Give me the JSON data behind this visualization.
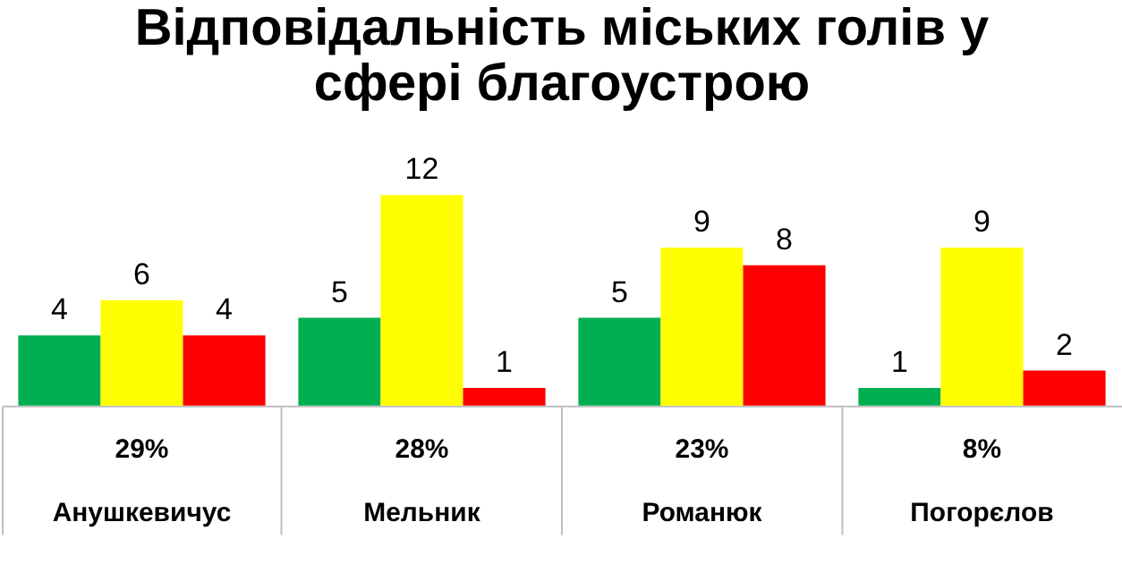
{
  "chart_data": {
    "type": "bar",
    "title": [
      "Відповідальність міських голів у",
      "сфері благоустрою"
    ],
    "categories": [
      "Анушкевичус",
      "Мельник",
      "Романюк",
      "Погорєлов"
    ],
    "series": [
      {
        "color": "#00b050",
        "values": [
          4,
          5,
          5,
          1
        ]
      },
      {
        "color": "#ffff00",
        "values": [
          6,
          12,
          9,
          9
        ]
      },
      {
        "color": "#ff0000",
        "values": [
          4,
          1,
          8,
          2
        ]
      }
    ],
    "data_labels": true,
    "grid": false,
    "legend": false,
    "annotations": [
      "29%",
      "28%",
      "23%",
      "8%"
    ]
  }
}
